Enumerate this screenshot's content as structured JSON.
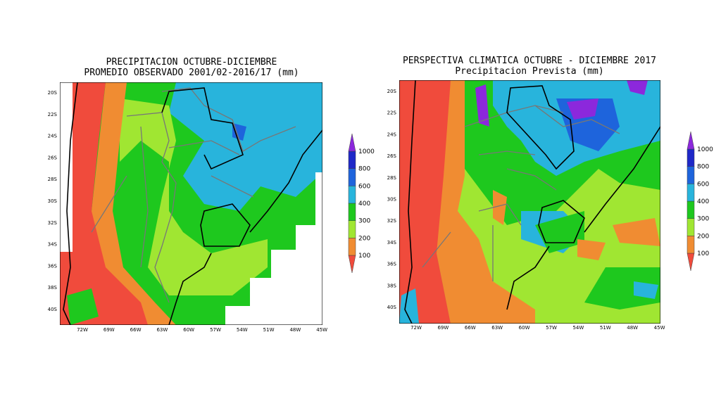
{
  "maps": [
    {
      "title": [
        "PRECIPITACION OCTUBRE-DICIEMBRE",
        "PROMEDIO OBSERVADO 2001/02-2016/17 (mm)"
      ],
      "lat_labels": [
        "20S",
        "22S",
        "24S",
        "26S",
        "28S",
        "30S",
        "32S",
        "34S",
        "36S",
        "38S",
        "40S"
      ],
      "lon_labels": [
        "72W",
        "69W",
        "66W",
        "63W",
        "60W",
        "57W",
        "54W",
        "51W",
        "48W",
        "45W"
      ],
      "colorbar": {
        "levels": [
          100,
          200,
          300,
          400,
          600,
          800,
          1000
        ],
        "colors": [
          "#f04b3c",
          "#f08c32",
          "#a0e632",
          "#1ec81e",
          "#28b4dc",
          "#1e64dc",
          "#1e28c8",
          "#8c28dc"
        ]
      }
    },
    {
      "title": [
        "PERSPECTIVA CLIMATICA OCTUBRE - DICIEMBRE 2017",
        "Precipitacion Prevista (mm)"
      ],
      "lat_labels": [
        "20S",
        "22S",
        "24S",
        "26S",
        "28S",
        "30S",
        "32S",
        "34S",
        "36S",
        "38S",
        "40S"
      ],
      "lon_labels": [
        "72W",
        "69W",
        "66W",
        "63W",
        "60W",
        "57W",
        "54W",
        "51W",
        "48W",
        "45W"
      ],
      "colorbar": {
        "levels": [
          100,
          200,
          300,
          400,
          600,
          800,
          1000
        ],
        "colors": [
          "#f04b3c",
          "#f08c32",
          "#a0e632",
          "#1ec81e",
          "#28b4dc",
          "#1e64dc",
          "#1e28c8",
          "#8c28dc"
        ]
      }
    }
  ]
}
